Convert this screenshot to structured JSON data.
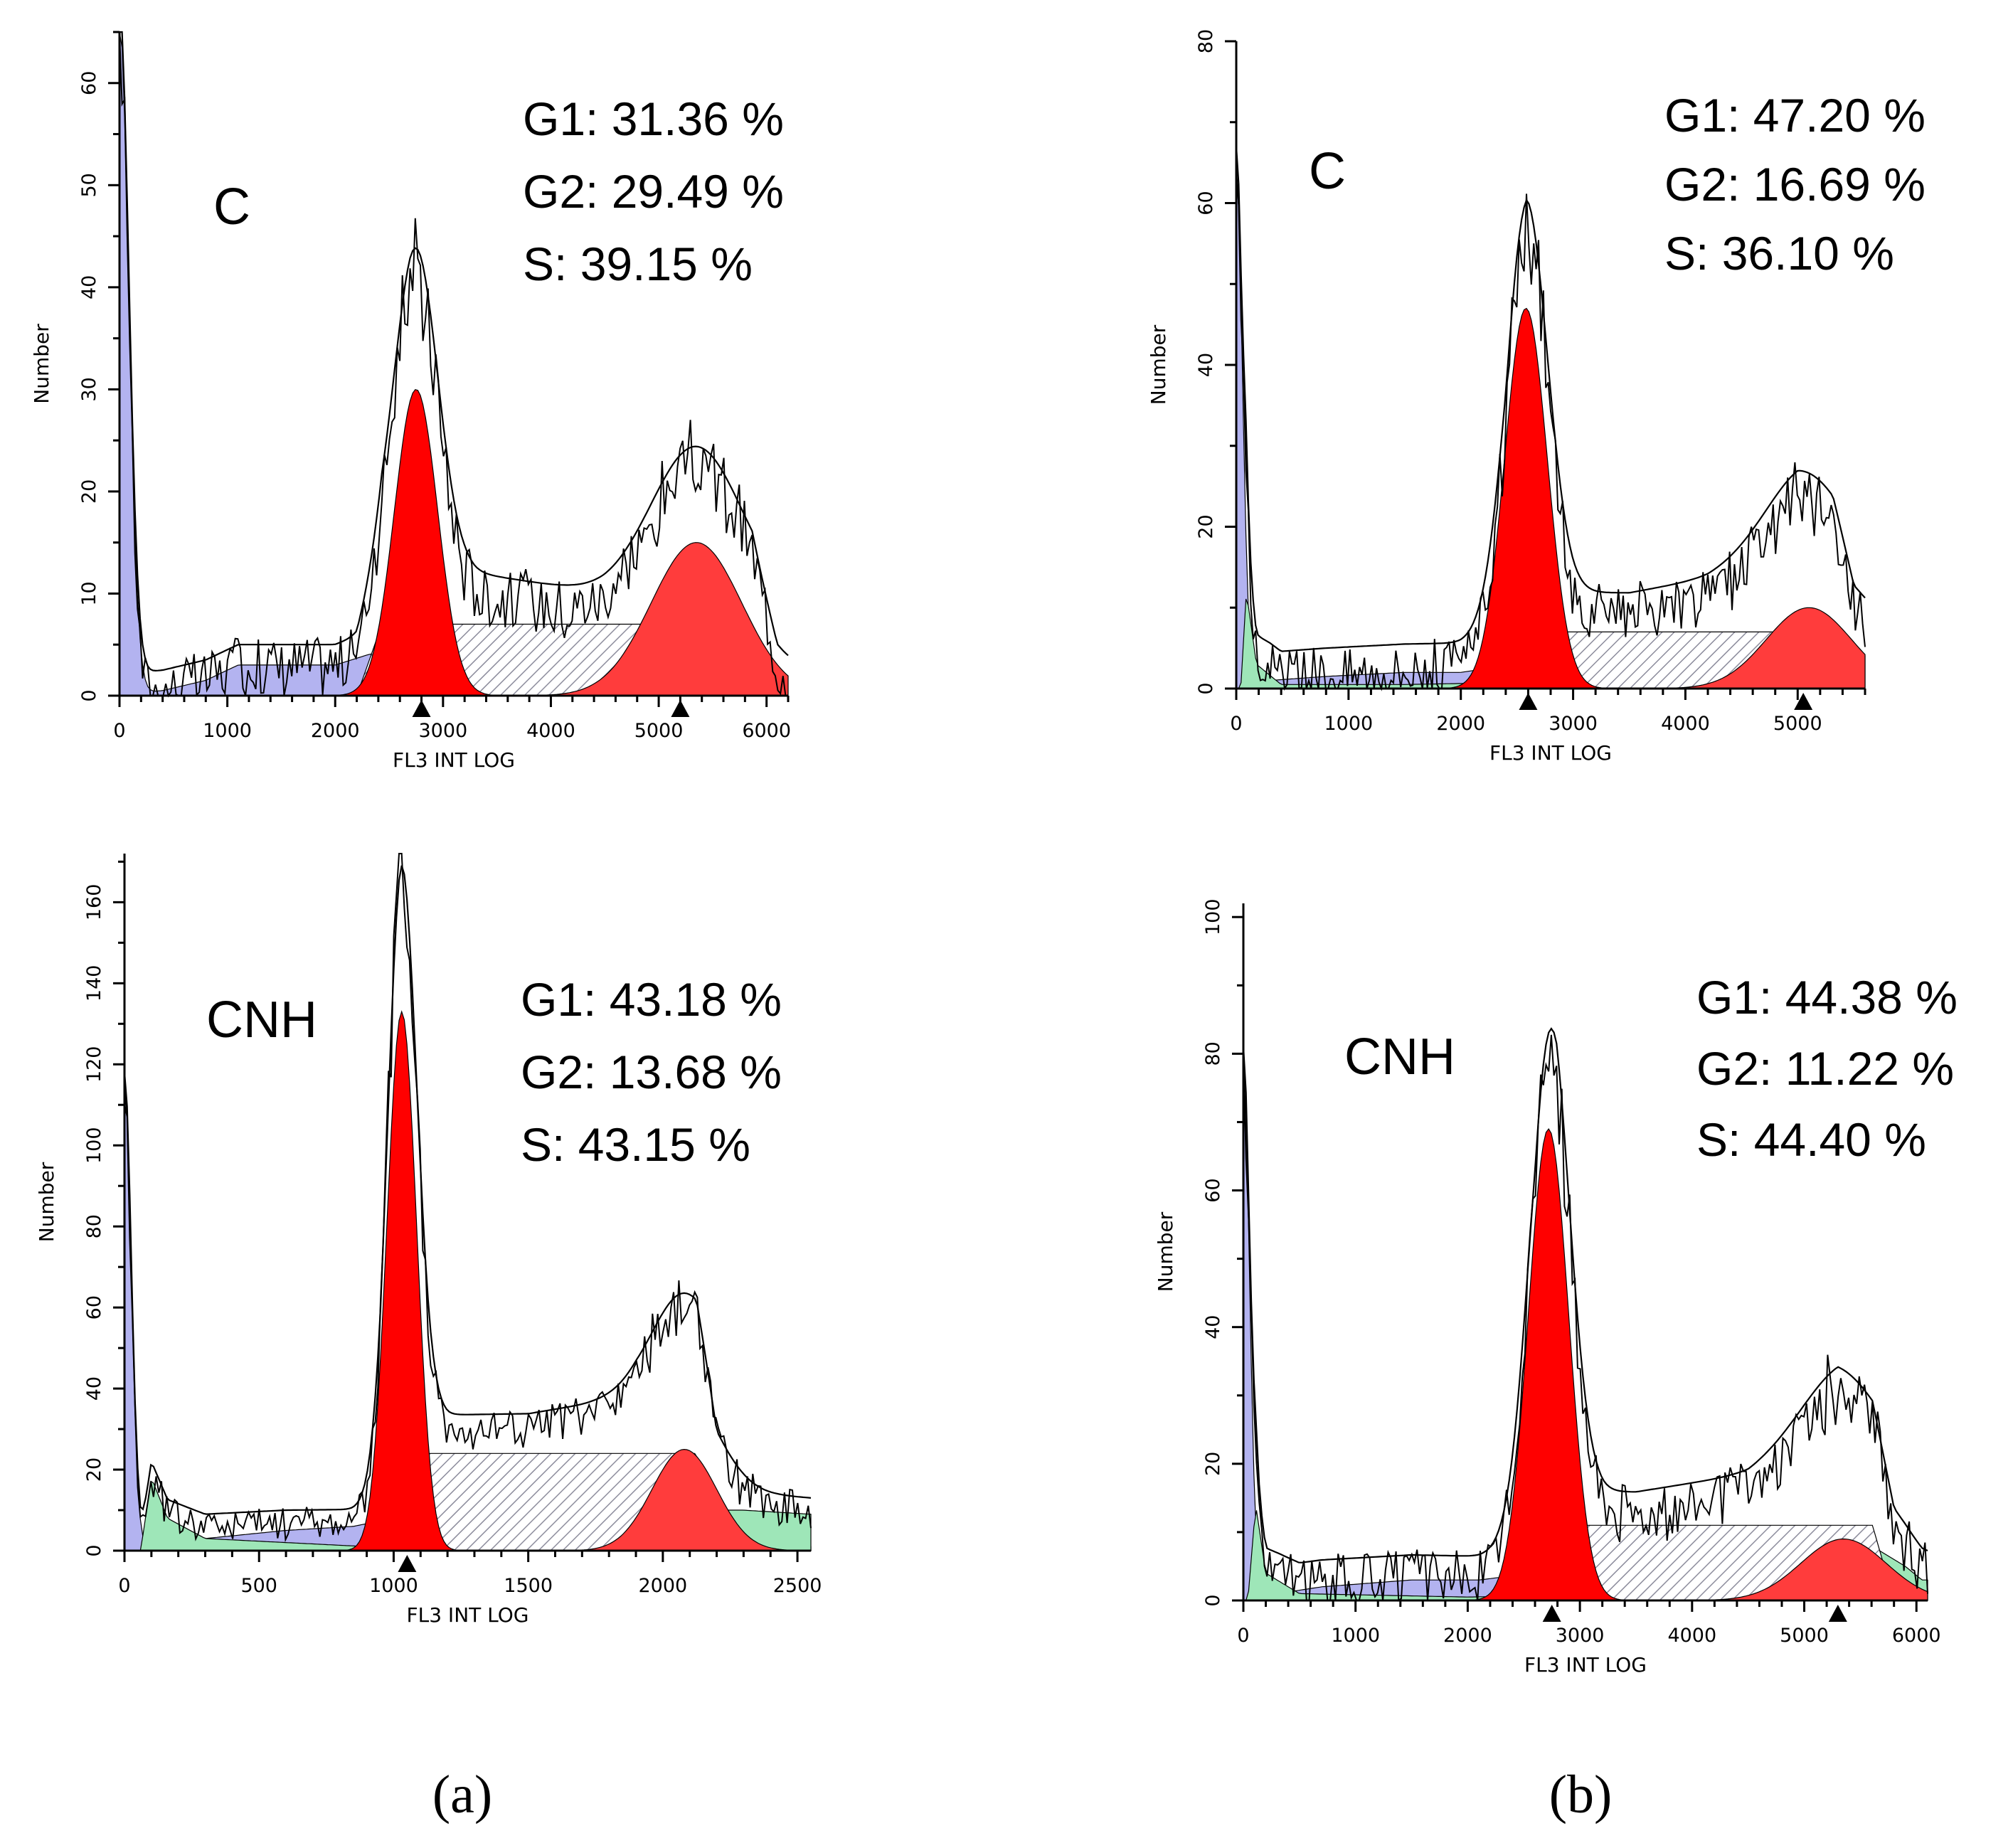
{
  "panel_labels": {
    "a": "(a)",
    "b": "(b)"
  },
  "colors": {
    "debris": "#b3b3f0",
    "aggregate": "#9ee6b8",
    "g1": "#ff0000",
    "g2": "#ff3c3c",
    "s_hatch": "#8c8c9c",
    "trace": "#000000"
  },
  "chart_data": [
    {
      "id": "a-top",
      "type": "histogram",
      "sample": "C",
      "stats": [
        "G1: 31.36 %",
        "G2: 29.49 %",
        "S: 39.15 %"
      ],
      "xlabel": "FL3 INT LOG",
      "ylabel": "Number",
      "xlim": [
        0,
        6200
      ],
      "ylim": [
        0,
        65
      ],
      "xticks": [
        0,
        1000,
        2000,
        3000,
        4000,
        5000,
        6000
      ],
      "yticks": [
        0,
        10,
        20,
        30,
        40,
        50,
        60
      ],
      "markers": [
        2800,
        5200
      ],
      "g1": {
        "mean": 2750,
        "sd": 200,
        "height": 30
      },
      "g2": {
        "mean": 5350,
        "sd": 420,
        "height": 15
      },
      "s_phase": {
        "start": 2200,
        "end": 6100,
        "height": 7
      },
      "debris": {
        "peak": 66,
        "decay": 85,
        "plateau": [
          [
            0,
            0
          ],
          [
            400,
            0.5
          ],
          [
            800,
            1.5
          ],
          [
            1100,
            3
          ],
          [
            2000,
            3
          ],
          [
            2300,
            4
          ],
          [
            2700,
            5
          ],
          [
            3300,
            3
          ],
          [
            4500,
            1
          ],
          [
            5200,
            0.5
          ],
          [
            6000,
            0
          ]
        ]
      },
      "aggregates": null,
      "noise": 6,
      "fit_offset": 2
    },
    {
      "id": "a-bottom",
      "type": "histogram",
      "sample": "CNH",
      "stats": [
        "G1: 43.18 %",
        "G2: 13.68 %",
        "S: 43.15 %"
      ],
      "xlabel": "FL3 INT LOG",
      "ylabel": "Number",
      "xlim": [
        0,
        2550
      ],
      "ylim": [
        0,
        172
      ],
      "xticks": [
        0,
        500,
        1000,
        1500,
        2000,
        2500
      ],
      "yticks": [
        0,
        20,
        40,
        60,
        80,
        100,
        120,
        140,
        160
      ],
      "markers": [
        1050
      ],
      "g1": {
        "mean": 1030,
        "sd": 55,
        "height": 133
      },
      "g2": {
        "mean": 2080,
        "sd": 120,
        "height": 25
      },
      "s_phase": {
        "start": 950,
        "end": 2200,
        "height": 24
      },
      "debris": {
        "peak": 115,
        "decay": 25,
        "plateau": [
          [
            0,
            0
          ],
          [
            300,
            3
          ],
          [
            600,
            5
          ],
          [
            850,
            6
          ],
          [
            1000,
            8
          ],
          [
            1200,
            4
          ],
          [
            1700,
            2
          ],
          [
            2550,
            1
          ]
        ]
      },
      "aggregates": {
        "points": [
          [
            60,
            0
          ],
          [
            100,
            18
          ],
          [
            160,
            8
          ],
          [
            300,
            3
          ],
          [
            900,
            1
          ],
          [
            1500,
            4
          ],
          [
            1900,
            10
          ],
          [
            2300,
            10
          ],
          [
            2550,
            9
          ]
        ]
      },
      "noise": 9,
      "fit_offset": 3
    },
    {
      "id": "b-top",
      "type": "histogram",
      "sample": "C",
      "stats": [
        "G1: 47.20 %",
        "G2: 16.69 %",
        "S: 36.10 %"
      ],
      "xlabel": "FL3 INT LOG",
      "ylabel": "Number",
      "xlim": [
        0,
        5600
      ],
      "ylim": [
        0,
        80
      ],
      "xticks": [
        0,
        1000,
        2000,
        3000,
        4000,
        5000
      ],
      "yticks": [
        0,
        20,
        40,
        60,
        80
      ],
      "markers": [
        2600,
        5050
      ],
      "g1": {
        "mean": 2580,
        "sd": 190,
        "height": 47
      },
      "g2": {
        "mean": 5100,
        "sd": 380,
        "height": 10
      },
      "s_phase": {
        "start": 2400,
        "end": 5500,
        "height": 7
      },
      "debris": {
        "peak": 64,
        "decay": 55,
        "plateau": [
          [
            0,
            0
          ],
          [
            300,
            1
          ],
          [
            800,
            1.5
          ],
          [
            1500,
            2
          ],
          [
            2000,
            2
          ],
          [
            2500,
            3
          ],
          [
            3000,
            1
          ],
          [
            4500,
            0.5
          ],
          [
            5600,
            0
          ]
        ]
      },
      "aggregates": {
        "points": [
          [
            40,
            0
          ],
          [
            90,
            12
          ],
          [
            180,
            3
          ],
          [
            400,
            0.5
          ],
          [
            1500,
            0.5
          ],
          [
            3500,
            1
          ],
          [
            4200,
            3
          ],
          [
            5000,
            7
          ],
          [
            5500,
            4
          ]
        ]
      },
      "noise": 7,
      "fit_offset": 3
    },
    {
      "id": "b-bottom",
      "type": "histogram",
      "sample": "CNH",
      "stats": [
        "G1: 44.38 %",
        "G2: 11.22 %",
        "S: 44.40 %"
      ],
      "xlabel": "FL3 INT LOG",
      "ylabel": "Number",
      "xlim": [
        0,
        6100
      ],
      "ylim": [
        0,
        102
      ],
      "xticks": [
        0,
        1000,
        2000,
        3000,
        4000,
        5000,
        6000
      ],
      "yticks": [
        0,
        20,
        40,
        60,
        80,
        100
      ],
      "markers": [
        2750,
        5300
      ],
      "g1": {
        "mean": 2720,
        "sd": 180,
        "height": 69
      },
      "g2": {
        "mean": 5350,
        "sd": 380,
        "height": 9
      },
      "s_phase": {
        "start": 2600,
        "end": 5800,
        "height": 11
      },
      "debris": {
        "peak": 78,
        "decay": 55,
        "plateau": [
          [
            0,
            0
          ],
          [
            300,
            1
          ],
          [
            700,
            2
          ],
          [
            1500,
            3
          ],
          [
            2100,
            3
          ],
          [
            2600,
            4
          ],
          [
            3200,
            1
          ],
          [
            4500,
            0.5
          ],
          [
            6100,
            0
          ]
        ]
      },
      "aggregates": {
        "points": [
          [
            40,
            0
          ],
          [
            110,
            14
          ],
          [
            200,
            4
          ],
          [
            500,
            1
          ],
          [
            2000,
            0.5
          ],
          [
            3500,
            1
          ],
          [
            4500,
            4
          ],
          [
            5300,
            11
          ],
          [
            5900,
            5
          ],
          [
            6050,
            3
          ]
        ]
      },
      "noise": 8,
      "fit_offset": 3
    }
  ]
}
